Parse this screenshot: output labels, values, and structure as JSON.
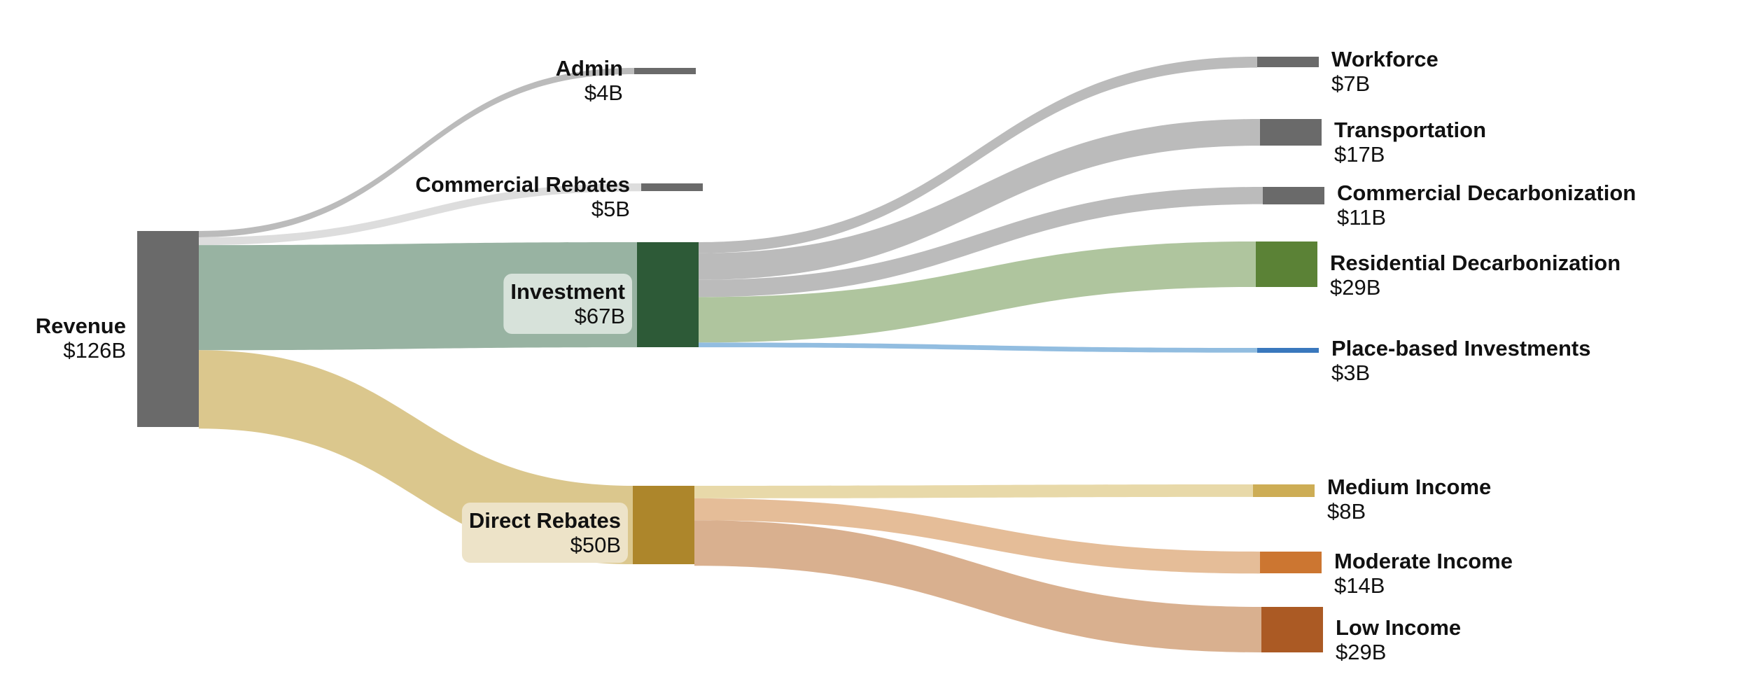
{
  "chart_data": {
    "type": "sankey",
    "title": "",
    "units": "$B",
    "colors": {
      "revenue": "#6a6a6a",
      "investment": "#2d5a37",
      "direct_rebates": "#ad862b",
      "gray_node": "#6a6a6a",
      "residential": "#5b8236",
      "place_based": "#3a78bd",
      "medium_income": "#cdad55",
      "moderate_income": "#cc7631",
      "low_income": "#ab5a24",
      "link_gray": "#bbbbbb",
      "link_light_gray": "#dddddd",
      "link_investment": "#98b3a2",
      "link_direct": "#dbc78d",
      "link_residential": "#afc59e",
      "link_place": "#92bde0",
      "link_medium": "#e8d9a9",
      "link_moderate": "#e5bd98",
      "link_low": "#d9b08f",
      "label_bg_investment": "#d7e2da",
      "label_bg_direct": "#ede3c8"
    },
    "nodes": [
      {
        "id": "revenue",
        "name": "Revenue",
        "value_label": "$126B",
        "value": 126
      },
      {
        "id": "admin",
        "name": "Admin",
        "value_label": "$4B",
        "value": 4
      },
      {
        "id": "commercial_rebates",
        "name": "Commercial Rebates",
        "value_label": "$5B",
        "value": 5
      },
      {
        "id": "investment",
        "name": "Investment",
        "value_label": "$67B",
        "value": 67
      },
      {
        "id": "direct_rebates",
        "name": "Direct Rebates",
        "value_label": "$50B",
        "value": 50
      },
      {
        "id": "workforce",
        "name": "Workforce",
        "value_label": "$7B",
        "value": 7
      },
      {
        "id": "transportation",
        "name": "Transportation",
        "value_label": "$17B",
        "value": 17
      },
      {
        "id": "commercial_decarbonization",
        "name": "Commercial Decarbonization",
        "value_label": "$11B",
        "value": 11
      },
      {
        "id": "residential_decarbonization",
        "name": "Residential Decarbonization",
        "value_label": "$29B",
        "value": 29
      },
      {
        "id": "place_based",
        "name": "Place-based Investments",
        "value_label": "$3B",
        "value": 3
      },
      {
        "id": "medium_income",
        "name": "Medium Income",
        "value_label": "$8B",
        "value": 8
      },
      {
        "id": "moderate_income",
        "name": "Moderate Income",
        "value_label": "$14B",
        "value": 14
      },
      {
        "id": "low_income",
        "name": "Low Income",
        "value_label": "$29B",
        "value": 29
      }
    ],
    "links": [
      {
        "source": "revenue",
        "target": "admin",
        "value": 4
      },
      {
        "source": "revenue",
        "target": "commercial_rebates",
        "value": 5
      },
      {
        "source": "revenue",
        "target": "investment",
        "value": 67
      },
      {
        "source": "revenue",
        "target": "direct_rebates",
        "value": 50
      },
      {
        "source": "investment",
        "target": "workforce",
        "value": 7
      },
      {
        "source": "investment",
        "target": "transportation",
        "value": 17
      },
      {
        "source": "investment",
        "target": "commercial_decarbonization",
        "value": 11
      },
      {
        "source": "investment",
        "target": "residential_decarbonization",
        "value": 29
      },
      {
        "source": "investment",
        "target": "place_based",
        "value": 3
      },
      {
        "source": "direct_rebates",
        "target": "medium_income",
        "value": 8
      },
      {
        "source": "direct_rebates",
        "target": "moderate_income",
        "value": 14
      },
      {
        "source": "direct_rebates",
        "target": "low_income",
        "value": 29
      }
    ]
  }
}
